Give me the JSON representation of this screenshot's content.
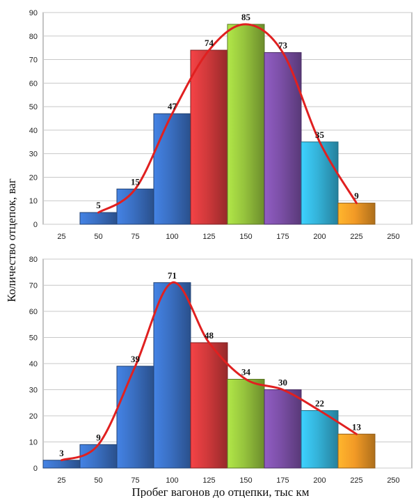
{
  "chart_data": {
    "type": "bar",
    "xlabel": "Пробег вагонов до отцепки, тыс км",
    "ylabel": "Количество отцепок, ваг",
    "x_ticks": [
      "25",
      "50",
      "75",
      "100",
      "125",
      "150",
      "175",
      "200",
      "225",
      "250"
    ],
    "charts": [
      {
        "ylim": [
          0,
          90
        ],
        "y_ticks": [
          "0",
          "10",
          "20",
          "30",
          "40",
          "50",
          "60",
          "70",
          "80",
          "90"
        ],
        "x": [
          50,
          75,
          100,
          125,
          150,
          175,
          200,
          225
        ],
        "values": [
          5,
          15,
          47,
          74,
          85,
          73,
          35,
          9
        ],
        "colors": [
          "#3a6fc2",
          "#3a6fc2",
          "#3a6fc2",
          "#d0393b",
          "#96c43d",
          "#7b4fa6",
          "#34b2d8",
          "#f29a26"
        ],
        "curve_color": "#e02020",
        "grid": true
      },
      {
        "ylim": [
          0,
          80
        ],
        "y_ticks": [
          "0",
          "10",
          "20",
          "30",
          "40",
          "50",
          "60",
          "70",
          "80"
        ],
        "x": [
          25,
          50,
          75,
          100,
          125,
          150,
          175,
          200,
          225
        ],
        "values": [
          3,
          9,
          39,
          71,
          48,
          34,
          30,
          22,
          13
        ],
        "colors": [
          "#3a6fc2",
          "#3a6fc2",
          "#3a6fc2",
          "#3a6fc2",
          "#d0393b",
          "#96c43d",
          "#7b4fa6",
          "#34b2d8",
          "#f29a26"
        ],
        "curve_color": "#e02020",
        "grid": true
      }
    ]
  }
}
